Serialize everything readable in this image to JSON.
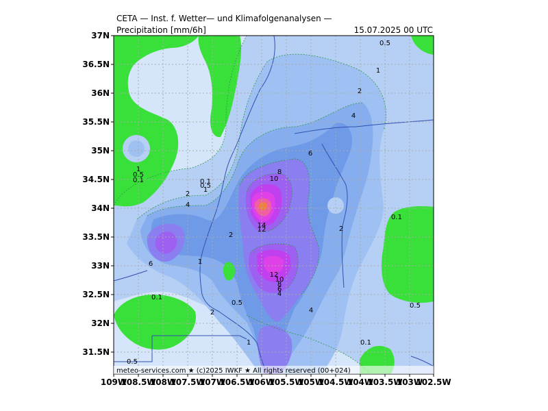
{
  "header": {
    "title_line1": "CETA — Inst. f. Wetter— und Klimafolgenanalysen —",
    "title_line2": "Precipitation [mm/6h]",
    "datetime": "15.07.2025 00 UTC"
  },
  "credit": "meteo-services.com ★ (c)2025 IWKF ★ All rights reserved (00+024)",
  "axes": {
    "lat_labels": [
      "37N",
      "36.5N",
      "36N",
      "35.5N",
      "35N",
      "34.5N",
      "34N",
      "33.5N",
      "33N",
      "32.5N",
      "32N",
      "31.5N"
    ],
    "lon_labels": [
      "109W",
      "108.5W",
      "108W",
      "107.5W",
      "107W",
      "106.5W",
      "106W",
      "105.5W",
      "105W",
      "104.5W",
      "104W",
      "103.5W",
      "103W",
      "102.5W"
    ]
  },
  "colors": {
    "dry": "#3ae03a",
    "lv_0_1": "#d6e6fa",
    "lv_0_5": "#b6cff5",
    "lv_1": "#9fc0f2",
    "lv_2": "#86adee",
    "lv_4": "#6f9ae8",
    "lv_6": "#8a7ef0",
    "lv_8": "#9e60f0",
    "lv_10": "#c040f0",
    "lv_12": "#e040e8",
    "lv_14": "#f060a0",
    "peak": "#f08040",
    "contour": "#2a9a40",
    "border": "#3050b0",
    "grid": "#aaaaaa"
  },
  "contour_labels": [
    {
      "text": "0.5"
    },
    {
      "text": "1"
    },
    {
      "text": "2"
    },
    {
      "text": "4"
    },
    {
      "text": "6"
    },
    {
      "text": "8"
    },
    {
      "text": "10"
    },
    {
      "text": "1"
    },
    {
      "text": "0.5"
    },
    {
      "text": "0.1"
    },
    {
      "text": "0.1"
    },
    {
      "text": "0.5"
    },
    {
      "text": "1"
    },
    {
      "text": "2"
    },
    {
      "text": "4"
    },
    {
      "text": "14"
    },
    {
      "text": "12"
    },
    {
      "text": "2"
    },
    {
      "text": "0.1"
    },
    {
      "text": "2"
    },
    {
      "text": "6"
    },
    {
      "text": "1"
    },
    {
      "text": "12"
    },
    {
      "text": "10"
    },
    {
      "text": "8"
    },
    {
      "text": "6"
    },
    {
      "text": "4"
    },
    {
      "text": "0.1"
    },
    {
      "text": "0.5"
    },
    {
      "text": "0.5"
    },
    {
      "text": "4"
    },
    {
      "text": "2"
    },
    {
      "text": "1"
    },
    {
      "text": "0.1"
    },
    {
      "text": "0.5"
    }
  ]
}
